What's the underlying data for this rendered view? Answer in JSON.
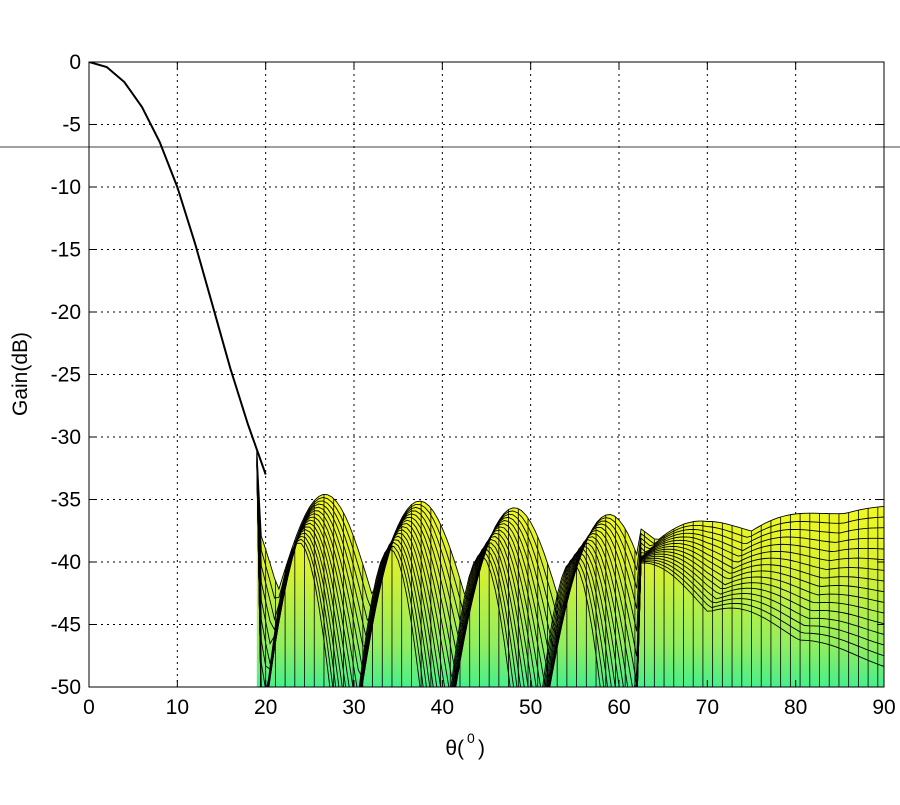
{
  "chart_data": {
    "type": "line",
    "title": "",
    "xlabel": "θ(",
    "xlabel_sup": "0",
    "xlabel_close": ")",
    "ylabel": "Gain(dB)",
    "xlim": [
      0,
      90
    ],
    "ylim": [
      -50,
      0
    ],
    "x_ticks": [
      0,
      10,
      20,
      30,
      40,
      50,
      60,
      70,
      80,
      90
    ],
    "y_ticks": [
      0,
      -5,
      -10,
      -15,
      -20,
      -25,
      -30,
      -35,
      -40,
      -45,
      -50
    ],
    "grid": true,
    "reference_line_y": -6.8,
    "main_lobe": {
      "x": [
        0,
        2,
        4,
        6,
        8,
        10,
        12,
        14,
        16,
        18,
        20
      ],
      "y": [
        0,
        -0.4,
        -1.6,
        -3.6,
        -6.4,
        -10,
        -14.5,
        -19.5,
        -24.5,
        -29.0,
        -33.0
      ]
    },
    "colors": {
      "envelope": "#000000",
      "surface_low": "#40f090",
      "surface_high": "#ffff00",
      "grid": "#000000"
    }
  }
}
